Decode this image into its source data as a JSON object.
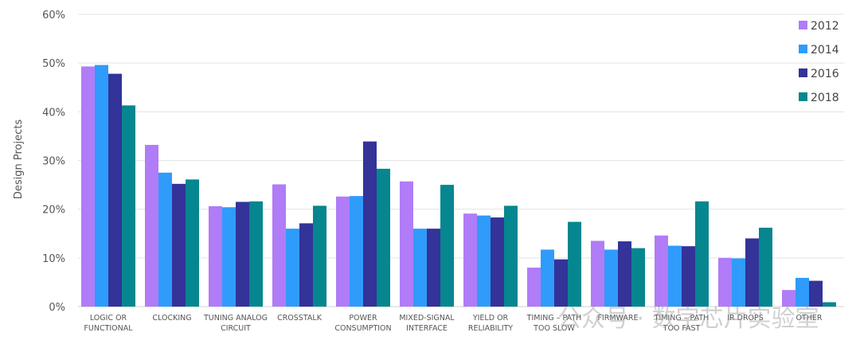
{
  "chart_data": {
    "type": "bar",
    "title": "",
    "xlabel": "",
    "ylabel": "Design Projects",
    "ylim": [
      0,
      60
    ],
    "yticks": [
      "0%",
      "10%",
      "20%",
      "30%",
      "40%",
      "50%",
      "60%"
    ],
    "grid": true,
    "legend_position": "right",
    "categories": [
      [
        "LOGIC OR",
        "FUNCTIONAL"
      ],
      [
        "CLOCKING"
      ],
      [
        "TUNING ANALOG",
        "CIRCUIT"
      ],
      [
        "CROSSTALK"
      ],
      [
        "POWER",
        "CONSUMPTION"
      ],
      [
        "MIXED-SIGNAL",
        "INTERFACE"
      ],
      [
        "YIELD OR",
        "RELIABILITY"
      ],
      [
        "TIMING – PATH",
        "TOO SLOW"
      ],
      [
        "FIRMWARE"
      ],
      [
        "TIMING – PATH",
        "TOO FAST"
      ],
      [
        "IR DROPS"
      ],
      [
        "OTHER"
      ]
    ],
    "series": [
      {
        "name": "2012",
        "color": "#b07cf7",
        "values": [
          49.3,
          33.2,
          20.6,
          25.1,
          22.6,
          25.7,
          19.1,
          8.0,
          13.5,
          14.6,
          10.0,
          3.4
        ]
      },
      {
        "name": "2014",
        "color": "#2f9bfa",
        "values": [
          49.6,
          27.5,
          20.4,
          16.0,
          22.7,
          16.0,
          18.7,
          11.7,
          11.7,
          12.5,
          9.9,
          5.9
        ]
      },
      {
        "name": "2016",
        "color": "#333399",
        "values": [
          47.8,
          25.2,
          21.5,
          17.1,
          33.9,
          16.0,
          18.3,
          9.7,
          13.4,
          12.4,
          14.0,
          5.3
        ]
      },
      {
        "name": "2018",
        "color": "#06868f",
        "values": [
          41.3,
          26.1,
          21.6,
          20.7,
          28.3,
          25.0,
          20.7,
          17.4,
          12.0,
          21.6,
          16.2,
          0.9
        ]
      }
    ]
  },
  "watermark": "公众号 · 数字芯片实验室"
}
